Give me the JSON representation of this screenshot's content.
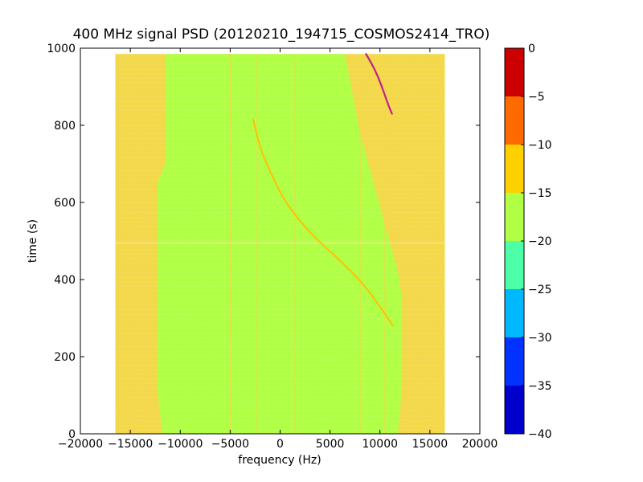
{
  "chart_data": {
    "type": "heatmap",
    "title": "400 MHz signal PSD (20120210_194715_COSMOS2414_TRO)",
    "xlabel": "frequency (Hz)",
    "ylabel": "time (s)",
    "xlim": [
      -20000,
      20000
    ],
    "ylim": [
      0,
      1000
    ],
    "x_ticks": [
      -20000,
      -15000,
      -10000,
      -5000,
      0,
      5000,
      10000,
      15000,
      20000
    ],
    "x_tick_labels": [
      "−20000",
      "−15000",
      "−10000",
      "−5000",
      "0",
      "5000",
      "10000",
      "15000",
      "20000"
    ],
    "y_ticks": [
      0,
      200,
      400,
      600,
      800,
      1000
    ],
    "y_tick_labels": [
      "0",
      "200",
      "400",
      "600",
      "800",
      "1000"
    ],
    "data_extent": {
      "freq_range": [
        -16500,
        16500
      ],
      "time_range": [
        0,
        985
      ]
    },
    "background_level_band": [
      -20,
      -15
    ],
    "edge_level_band": [
      -15,
      -10
    ],
    "colorbar": {
      "levels": [
        -40,
        -35,
        -30,
        -25,
        -20,
        -15,
        -10,
        -5,
        0
      ],
      "level_labels": [
        "−40",
        "−35",
        "−30",
        "−25",
        "−20",
        "−15",
        "−10",
        "−5",
        "0"
      ],
      "colors": [
        "#0000cc",
        "#0033ff",
        "#00b8ff",
        "#4dffa6",
        "#b0ff45",
        "#ffd000",
        "#ff6a00",
        "#cc0000"
      ]
    },
    "signal_traces": [
      {
        "level_band": [
          -15,
          -10
        ],
        "points": [
          [
            -2700,
            815
          ],
          [
            -2000,
            740
          ],
          [
            -1000,
            680
          ],
          [
            500,
            600
          ],
          [
            3000,
            520
          ],
          [
            6000,
            450
          ],
          [
            8300,
            390
          ],
          [
            10000,
            330
          ],
          [
            11300,
            280
          ]
        ]
      },
      {
        "level_band": [
          -5,
          0
        ],
        "points": [
          [
            8600,
            985
          ],
          [
            9500,
            945
          ],
          [
            10200,
            900
          ],
          [
            10800,
            855
          ],
          [
            11200,
            830
          ]
        ]
      }
    ],
    "vertical_lines_hz": [
      -5000,
      -2300,
      1500,
      8000,
      10500
    ],
    "horizontal_line_s": 495
  },
  "colors": {
    "background_fill": "#b0ff45",
    "edge_fill": "#f3d84a",
    "trace_main": "#ffc000",
    "trace_strong": "#c0208a"
  }
}
